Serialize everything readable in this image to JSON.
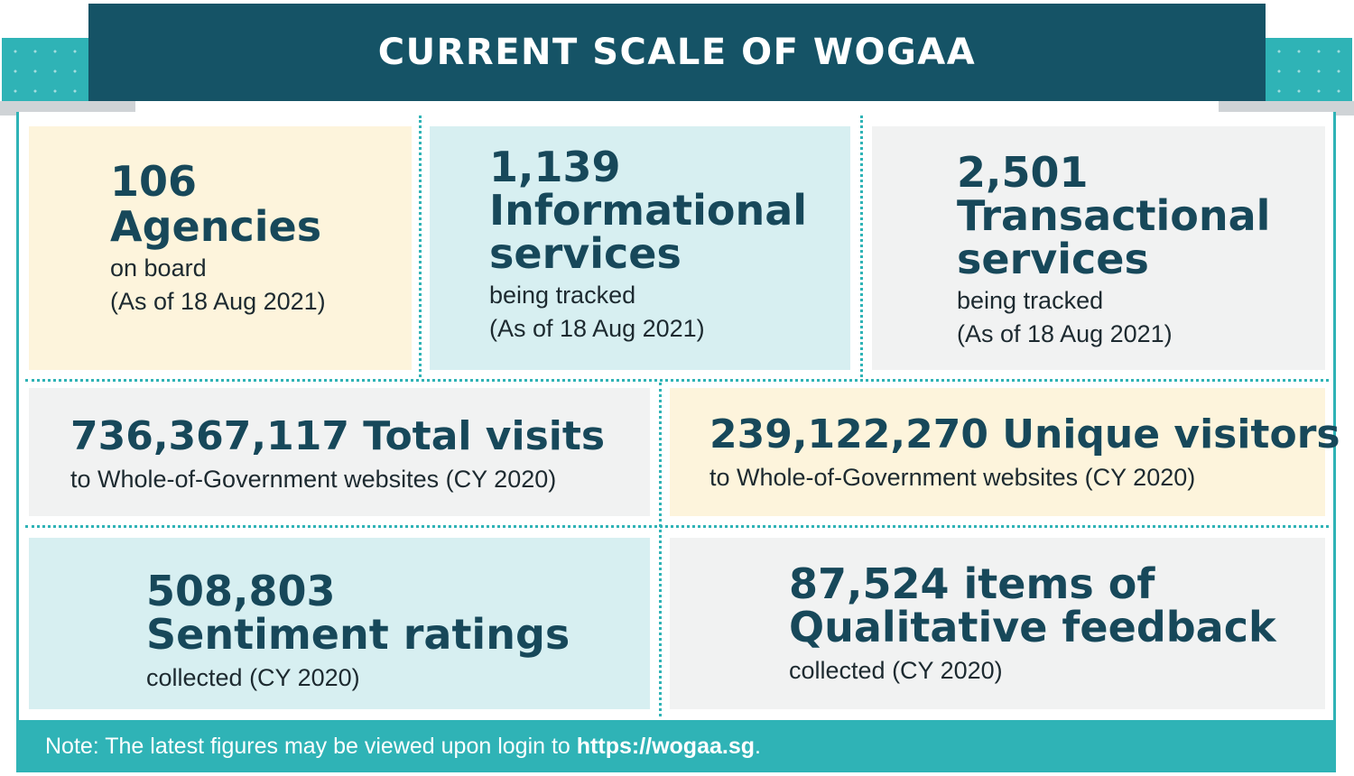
{
  "header": {
    "title": "CURRENT SCALE OF WOGAA"
  },
  "stats": {
    "agencies": {
      "value": "106",
      "label": "Agencies",
      "sub": "on board",
      "date": "(As of 18 Aug 2021)"
    },
    "informational": {
      "value": "1,139",
      "label1": "Informational",
      "label2": "services",
      "sub": "being tracked",
      "date": "(As of 18 Aug 2021)"
    },
    "transactional": {
      "value": "2,501",
      "label1": "Transactional",
      "label2": "services",
      "sub": "being tracked",
      "date": "(As of 18 Aug 2021)"
    },
    "visits": {
      "headline": "736,367,117 Total visits",
      "sub": "to Whole-of-Government websites (CY 2020)"
    },
    "visitors": {
      "headline": "239,122,270 Unique visitors",
      "sub": "to Whole-of-Government websites (CY 2020)"
    },
    "sentiment": {
      "value": "508,803",
      "label": "Sentiment ratings",
      "sub": "collected (CY 2020)"
    },
    "feedback": {
      "line1": "87,524 items of",
      "line2": "Qualitative feedback",
      "sub": "collected (CY 2020)"
    }
  },
  "footer": {
    "note": "Note: The latest figures may be viewed upon login to ",
    "link": "https://wogaa.sg",
    "end": "."
  },
  "colors": {
    "navy": "#155366",
    "teal": "#2fb3b6",
    "text": "#17485a",
    "yellow_tile": "#fdf4dc",
    "teal_tile": "#d7eff1",
    "grey_tile": "#f1f2f2"
  }
}
